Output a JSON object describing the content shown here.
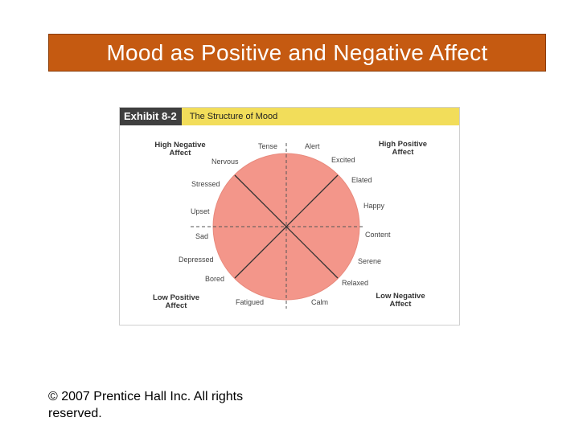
{
  "slide": {
    "title": "Mood as Positive and Negative Affect",
    "copyright": "© 2007 Prentice Hall Inc. All rights reserved."
  },
  "exhibit": {
    "tag": "Exhibit 8-2",
    "title": "The Structure of Mood",
    "corners": {
      "top_left": "High Negative Affect",
      "top_right": "High Positive Affect",
      "bottom_left": "Low Positive Affect",
      "bottom_right": "Low Negative Affect"
    },
    "moods": {
      "tense": "Tense",
      "alert": "Alert",
      "nervous": "Nervous",
      "excited": "Excited",
      "stressed": "Stressed",
      "elated": "Elated",
      "upset": "Upset",
      "happy": "Happy",
      "sad": "Sad",
      "content": "Content",
      "depressed": "Depressed",
      "serene": "Serene",
      "bored": "Bored",
      "relaxed": "Relaxed",
      "fatigued": "Fatigued",
      "calm": "Calm"
    },
    "colors": {
      "circle_fill": "#f3968a",
      "header_tag": "#3f3f3f",
      "header_title": "#f2dd5a",
      "title_bar": "#c55a11"
    }
  }
}
